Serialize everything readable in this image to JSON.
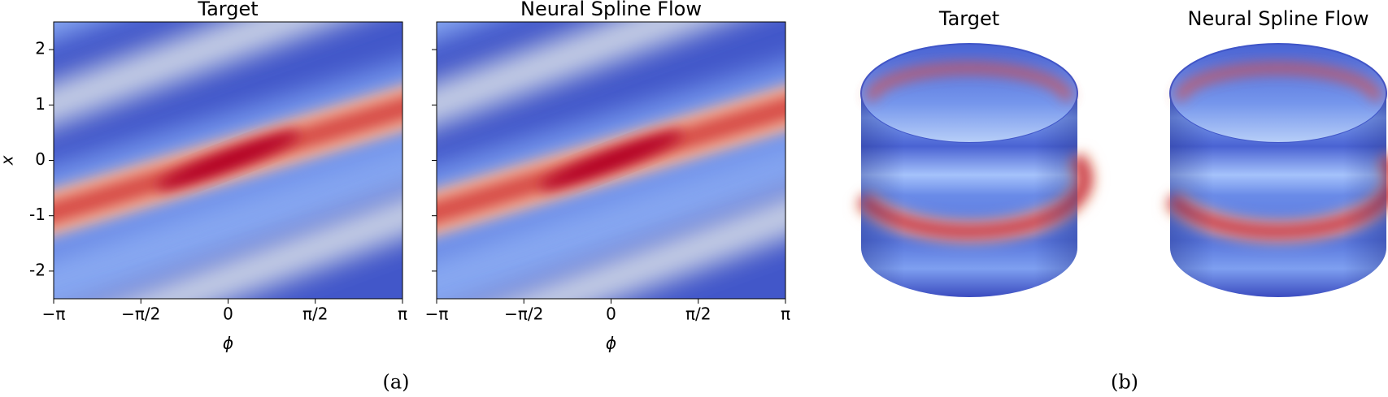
{
  "chart_data": [
    {
      "type": "heatmap",
      "title": "Target",
      "xlabel": "ϕ",
      "ylabel": "x",
      "xlim": [
        -3.14159,
        3.14159
      ],
      "ylim": [
        -2.5,
        2.5
      ],
      "xticks": [
        {
          "value": -3.14159,
          "label": "−π"
        },
        {
          "value": -1.5708,
          "label": "−π/2"
        },
        0,
        {
          "value": 1.5708,
          "label": "π/2"
        },
        {
          "value": 3.14159,
          "label": "π"
        }
      ],
      "yticks": [
        -2,
        -1,
        0,
        1,
        2
      ]
    },
    {
      "type": "heatmap",
      "title": "Neural Spline Flow",
      "xlabel": "ϕ",
      "xlim": [
        -3.14159,
        3.14159
      ],
      "ylim": [
        -2.5,
        2.5
      ],
      "xticks": [
        {
          "value": -3.14159,
          "label": "−π"
        },
        {
          "value": -1.5708,
          "label": "−π/2"
        },
        0,
        {
          "value": 1.5708,
          "label": "π/2"
        },
        {
          "value": 3.14159,
          "label": "π"
        }
      ],
      "yticks": [
        -2,
        -1,
        0,
        1,
        2
      ]
    },
    {
      "type": "surface",
      "title": "Target"
    },
    {
      "type": "surface",
      "title": "Neural Spline Flow"
    }
  ],
  "captions": [
    "(a)",
    "(b)"
  ]
}
